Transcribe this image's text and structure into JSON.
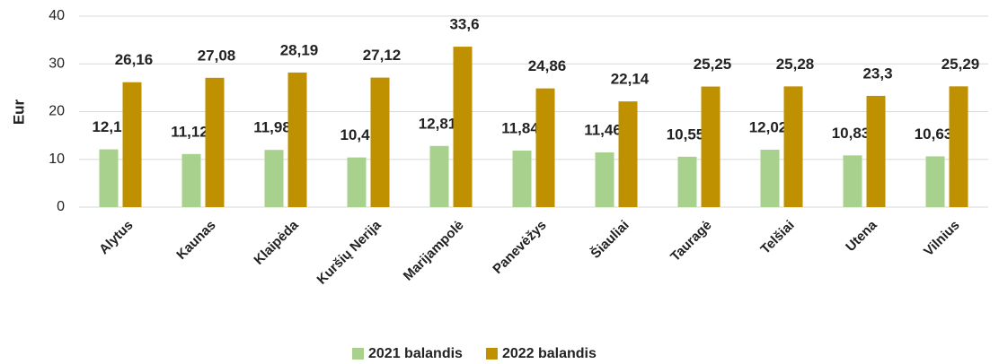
{
  "chart_data": {
    "type": "bar",
    "y_label": "Eur",
    "categories": [
      "Alytus",
      "Kaunas",
      "Klaipėda",
      "Kuršių Nerija",
      "Marijampolė",
      "Panevėžys",
      "Šiauliai",
      "Tauragė",
      "Telšiai",
      "Utena",
      "Vilnius"
    ],
    "series": [
      {
        "name": "2021 balandis",
        "color": "#a9d18e",
        "values": [
          12.1,
          11.12,
          11.98,
          10.4,
          12.81,
          11.84,
          11.46,
          10.55,
          12.02,
          10.83,
          10.63
        ],
        "value_labels": [
          "12,1",
          "11,12",
          "11,98",
          "10,4",
          "12,81",
          "11,84",
          "11,46",
          "10,55",
          "12,02",
          "10,83",
          "10,63"
        ]
      },
      {
        "name": "2022 balandis",
        "color": "#bf9000",
        "values": [
          26.16,
          27.08,
          28.19,
          27.12,
          33.6,
          24.86,
          22.14,
          25.25,
          25.28,
          23.3,
          25.29
        ],
        "value_labels": [
          "26,16",
          "27,08",
          "28,19",
          "27,12",
          "33,6",
          "24,86",
          "22,14",
          "25,25",
          "25,28",
          "23,3",
          "25,29"
        ]
      }
    ],
    "ylim": [
      0,
      40
    ],
    "yticks": [
      0,
      10,
      20,
      30,
      40
    ],
    "grid": true,
    "legend": "bottom"
  }
}
